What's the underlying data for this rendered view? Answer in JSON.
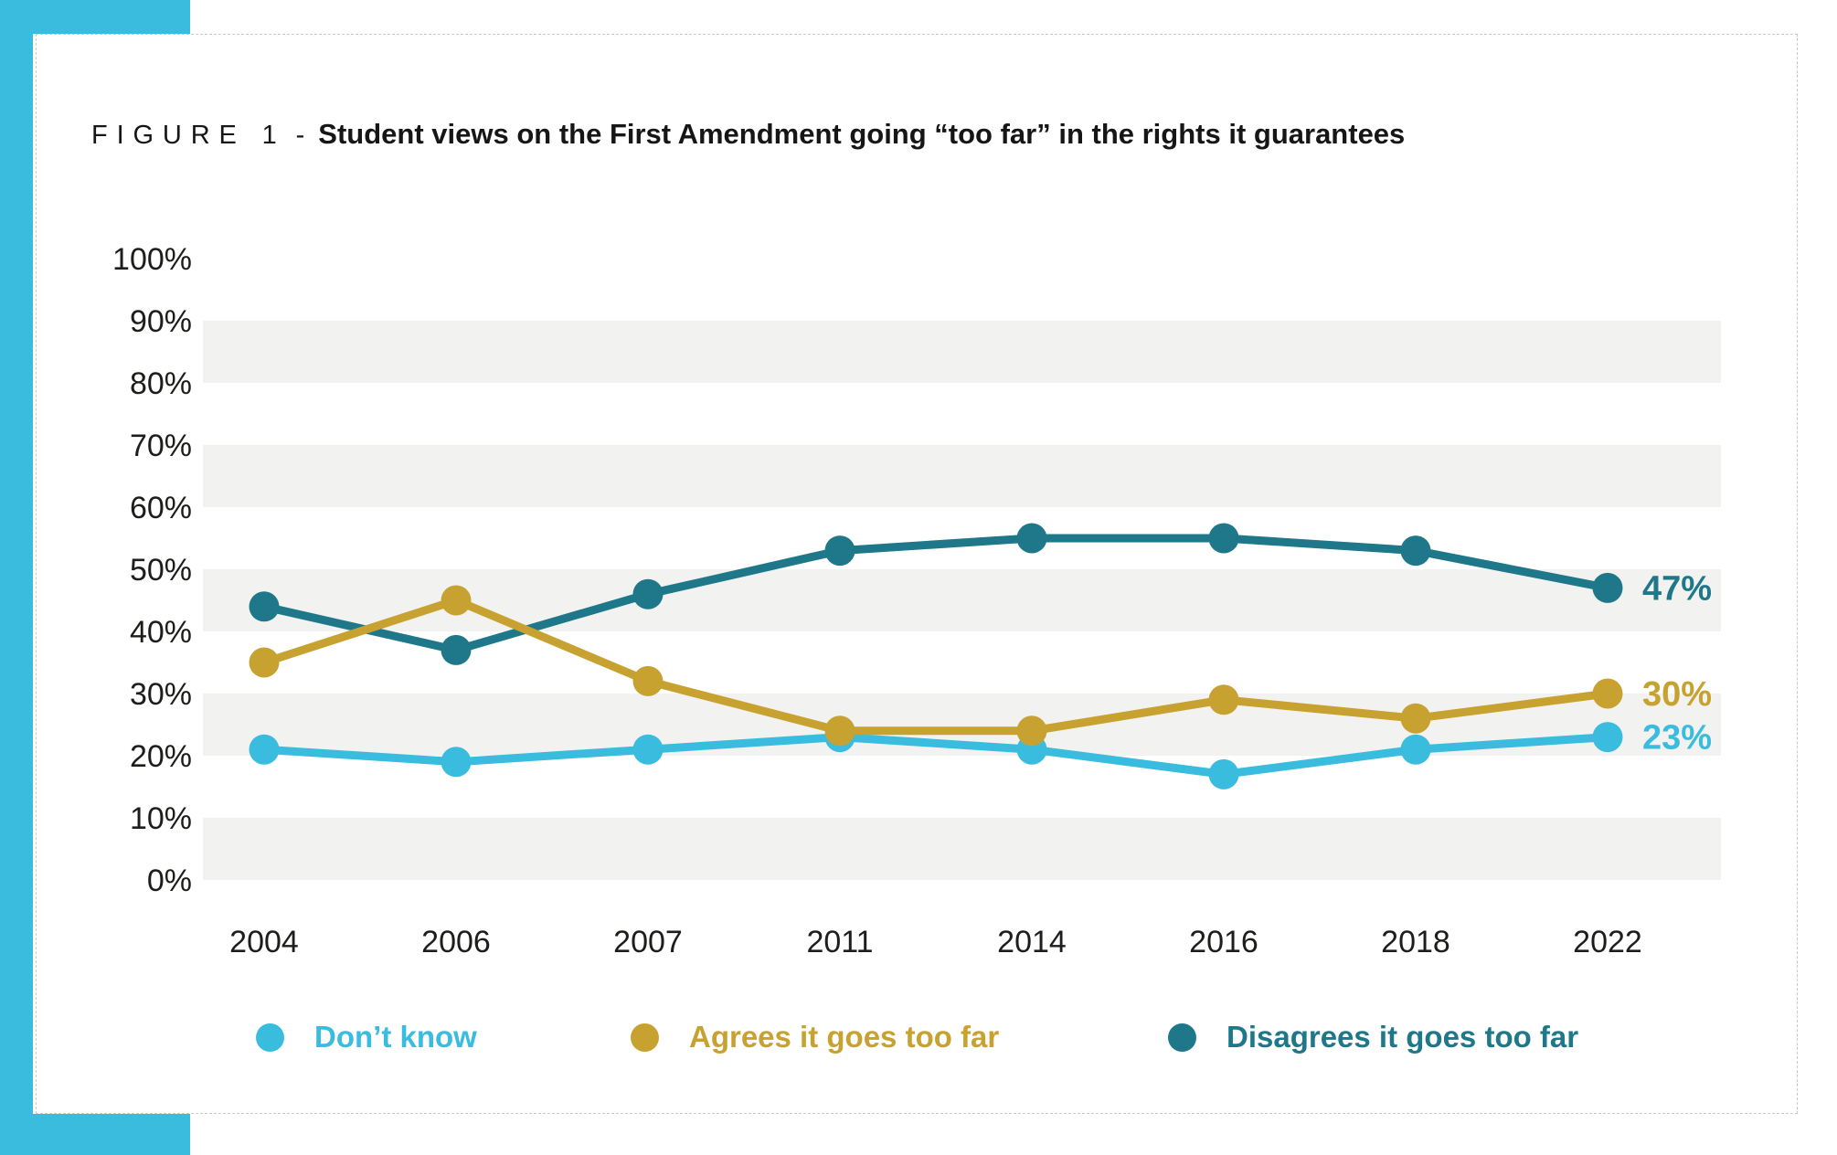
{
  "page": {
    "accent_color": "#3abcde",
    "card_border_color": "#c9c9c9",
    "background_color": "#ffffff"
  },
  "figure": {
    "label": "FIGURE 1",
    "separator": "-",
    "title": "Student views on the First Amendment going “too far” in the rights it guarantees"
  },
  "chart_data": {
    "type": "line",
    "categories": [
      "2004",
      "2006",
      "2007",
      "2011",
      "2014",
      "2016",
      "2018",
      "2022"
    ],
    "series": [
      {
        "name": "Don’t know",
        "color": "#3abcde",
        "values": [
          21,
          19,
          21,
          23,
          21,
          17,
          21,
          23
        ],
        "end_label": "23%"
      },
      {
        "name": "Agrees it goes too far",
        "color": "#c8a231",
        "values": [
          35,
          45,
          32,
          24,
          24,
          29,
          26,
          30
        ],
        "end_label": "30%"
      },
      {
        "name": "Disagrees it goes too far",
        "color": "#1e7889",
        "values": [
          44,
          37,
          46,
          53,
          55,
          55,
          53,
          47
        ],
        "end_label": "47%"
      }
    ],
    "ylim": [
      0,
      100
    ],
    "ytick_step": 10,
    "ytick_labels": [
      "0%",
      "10%",
      "20%",
      "30%",
      "40%",
      "50%",
      "60%",
      "70%",
      "80%",
      "90%",
      "100%"
    ],
    "grid_bands": [
      [
        0,
        10
      ],
      [
        20,
        30
      ],
      [
        40,
        50
      ],
      [
        60,
        70
      ],
      [
        80,
        90
      ]
    ],
    "band_color": "#f2f2f0",
    "axis_text_color": "#1d1d1b",
    "grid": "banded-rows",
    "legend_position": "bottom",
    "xlabel": "",
    "ylabel": ""
  }
}
